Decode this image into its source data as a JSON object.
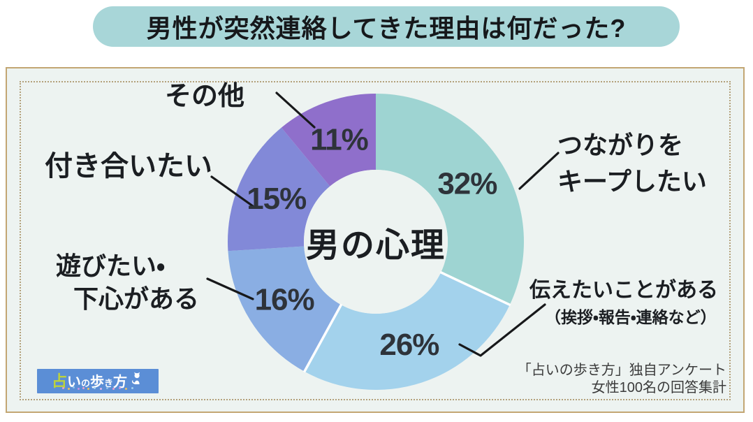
{
  "title": "男性が突然連絡してきた理由は何だった?",
  "chart_data": {
    "type": "pie",
    "style": "donut",
    "title": "男性が突然連絡してきた理由は何だった?",
    "center_label": "男の心理",
    "unit": "%",
    "legend_position": "callouts-around",
    "slices": [
      {
        "label": "つながりをキープしたい",
        "value": 32,
        "color": "#9ed4d2"
      },
      {
        "label": "伝えたいことがある（挨拶・報告・連絡など）",
        "value": 26,
        "color": "#a3d2ec"
      },
      {
        "label": "遊びたい・下心がある",
        "value": 16,
        "color": "#8aaee3"
      },
      {
        "label": "付き合いたい",
        "value": 15,
        "color": "#8289d8"
      },
      {
        "label": "その他",
        "value": 11,
        "color": "#8f6fcb"
      }
    ],
    "white_separators_after_slice": [
      0,
      1
    ]
  },
  "callouts": {
    "keep": {
      "line1": "つながりを",
      "line2": "キープしたい"
    },
    "tell": {
      "line1": "伝えたいことがある",
      "line2": "（挨拶・報告・連絡など）"
    },
    "play": {
      "line1": "遊びたい・",
      "line2": "下心がある"
    },
    "date": {
      "label": "付き合いたい"
    },
    "other": {
      "label": "その他"
    }
  },
  "source": {
    "line1": "「占いの歩き方」独自アンケート",
    "line2": "女性100名の回答集計"
  },
  "logo": {
    "accent_char": "占",
    "c1": "い",
    "c2": "の",
    "c3": "歩",
    "c4": "き",
    "c5": "方",
    "mascot": "cat-silhouette"
  },
  "colors": {
    "banner_bg": "#a8d6d8",
    "panel_bg": "#edf3f1",
    "border_solid": "#c3a673",
    "border_dotted": "#b3a07a",
    "leader_line": "#17181a",
    "percent_text": "#2e333a",
    "label_text": "#1b1e22",
    "logo_bg": "#5b8ed6",
    "logo_accent": "#bcd23c",
    "separator": "#ffffff",
    "title_text": "#16181b"
  }
}
